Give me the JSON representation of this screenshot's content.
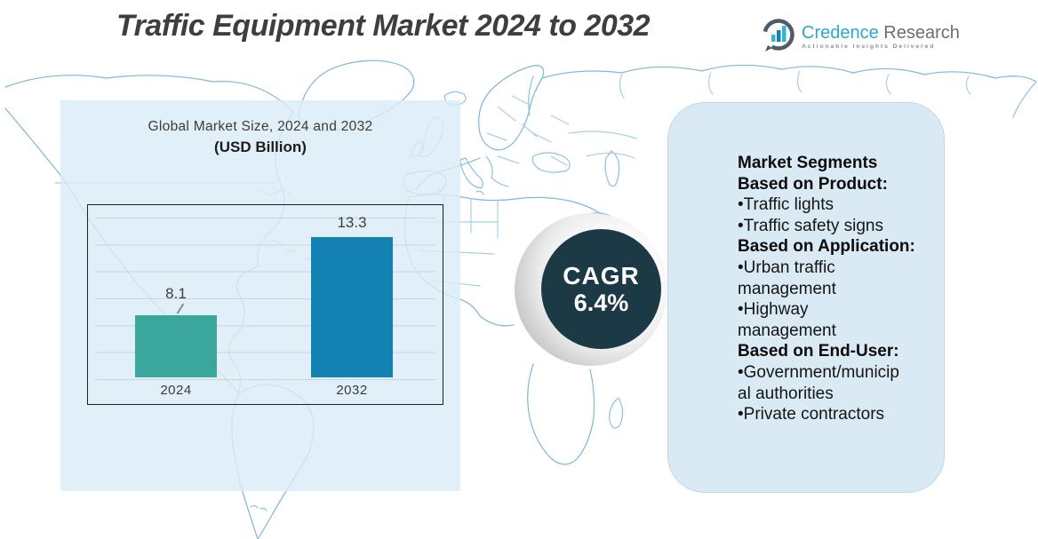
{
  "page_title": "Traffic Equipment Market 2024 to 2032",
  "logo": {
    "brand": "Credence",
    "brand2": "Research",
    "tagline": "Actionable Insights Delivered",
    "brand_color": "#2AA8CD",
    "brand2_color": "#6D6E71"
  },
  "chart_data": {
    "type": "bar",
    "title": "Global Market Size, 2024 and 2032",
    "subtitle": "(USD Billion)",
    "categories": [
      "2024",
      "2032"
    ],
    "values": [
      8.1,
      13.3
    ],
    "value_labels": [
      "8.1",
      "13.3"
    ],
    "bar_colors": [
      "#3AA69C",
      "#1381B2"
    ],
    "ylim": [
      4,
      14
    ],
    "grid": true,
    "legend": false
  },
  "cagr": {
    "label": "CAGR",
    "value": "6.4%",
    "circle_color": "#1C3A46",
    "text_color": "#FFFFFF"
  },
  "segments_panel": {
    "bg_color": "#DAEAF5",
    "lines": [
      {
        "text": "Market Segments",
        "style": "heading"
      },
      {
        "text": "Based on Product:",
        "style": "heading"
      },
      {
        "text": "Traffic lights",
        "style": "bullet"
      },
      {
        "text": "Traffic safety signs",
        "style": "bullet"
      },
      {
        "text": "Based on Application:",
        "style": "heading"
      },
      {
        "text": "Urban traffic\nmanagement",
        "style": "bullet"
      },
      {
        "text": "Highway\nmanagement",
        "style": "bullet"
      },
      {
        "text": "Based on End-User:",
        "style": "heading"
      },
      {
        "text": "Government/municip\nal authorities",
        "style": "bullet"
      },
      {
        "text": "Private contractors",
        "style": "bullet"
      }
    ]
  },
  "map_line_color": "#7FB7D6"
}
